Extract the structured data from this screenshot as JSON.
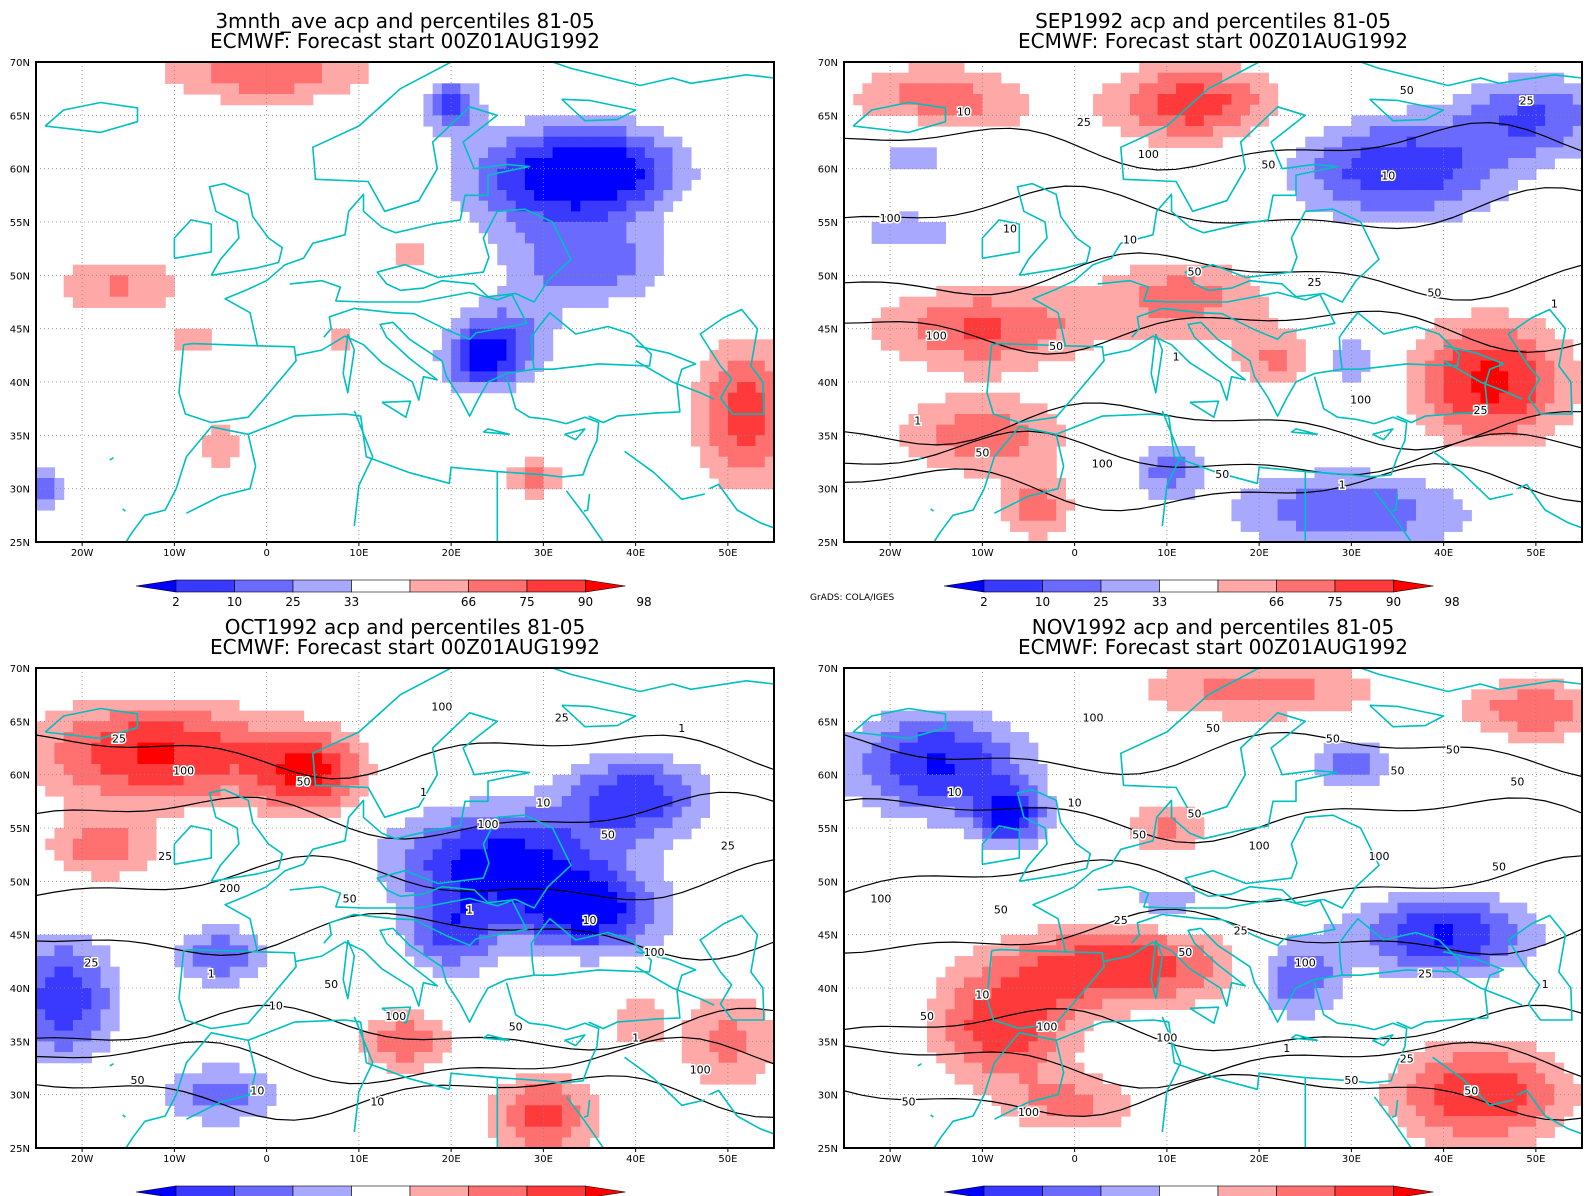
{
  "credit": "GrADS: COLA/IGES",
  "lon_labels": [
    "20W",
    "10W",
    "0",
    "10E",
    "20E",
    "30E",
    "40E",
    "50E"
  ],
  "lat_labels": [
    "25N",
    "30N",
    "35N",
    "40N",
    "45N",
    "50N",
    "55N",
    "60N",
    "65N",
    "70N"
  ],
  "colorbar": {
    "labels": [
      "2",
      "10",
      "25",
      "33",
      "66",
      "75",
      "90",
      "98"
    ],
    "colors": [
      "#0000ff",
      "#3a3aff",
      "#6a6aff",
      "#a8a8ff",
      "#ffffff",
      "#ffa8a8",
      "#ff7070",
      "#ff3a3a",
      "#ff0000"
    ]
  },
  "colors": {
    "coastline": "#00bfbf",
    "contour": "#000000",
    "grid": "#888888",
    "frame": "#000000",
    "shades": [
      "#0000ff",
      "#3a3aff",
      "#6a6aff",
      "#a8a8ff",
      "#ffffff",
      "#ffa8a8",
      "#ff7070",
      "#ff3a3a",
      "#ff0000"
    ]
  },
  "panels": [
    {
      "title1": "3mnth_ave acp and percentiles 81-05",
      "title2": "ECMWF: Forecast start 00Z01AUG1992",
      "show_credit": false,
      "contour_labels": [],
      "anomalies": [
        {
          "lon": -16,
          "lat": 49,
          "rx": 8,
          "ry": 3,
          "v": 1.0
        },
        {
          "lon": 0,
          "lat": 69,
          "rx": 12,
          "ry": 3,
          "v": 1.3
        },
        {
          "lon": -8,
          "lat": 44,
          "rx": 3,
          "ry": 2,
          "v": 0.8
        },
        {
          "lon": 30,
          "lat": 59,
          "rx": 10,
          "ry": 5,
          "v": -1.6
        },
        {
          "lon": 38,
          "lat": 60,
          "rx": 8,
          "ry": 4,
          "v": -1.4
        },
        {
          "lon": 35,
          "lat": 51,
          "rx": 9,
          "ry": 4,
          "v": -1.2
        },
        {
          "lon": 26,
          "lat": 44,
          "rx": 6,
          "ry": 4,
          "v": -1.1
        },
        {
          "lon": 23,
          "lat": 42,
          "rx": 4,
          "ry": 3,
          "v": -1.4
        },
        {
          "lon": 20,
          "lat": 65,
          "rx": 3,
          "ry": 2,
          "v": -0.9
        },
        {
          "lon": 52,
          "lat": 37,
          "rx": 6,
          "ry": 7,
          "v": 1.6
        },
        {
          "lon": 29,
          "lat": 31,
          "rx": 4,
          "ry": 2,
          "v": 1.1
        },
        {
          "lon": -5,
          "lat": 34,
          "rx": 3,
          "ry": 3,
          "v": 0.8
        },
        {
          "lon": -24,
          "lat": 30,
          "rx": 2,
          "ry": 2,
          "v": -1.2
        },
        {
          "lon": 16,
          "lat": 52,
          "rx": 3,
          "ry": 2,
          "v": 0.8
        },
        {
          "lon": 8,
          "lat": 44,
          "rx": 3,
          "ry": 2,
          "v": 0.7
        },
        {
          "lon": 20,
          "lat": 67,
          "rx": 3,
          "ry": 2,
          "v": -1.0
        }
      ]
    },
    {
      "title1": "SEP1992 acp and percentiles 81-05",
      "title2": "ECMWF: Forecast start 00Z01AUG1992",
      "show_credit": true,
      "contour_labels": [
        "50",
        "50",
        "50",
        "100",
        "100",
        "100",
        "100",
        "100",
        "25",
        "25",
        "50",
        "50",
        "25",
        "10",
        "50",
        "50",
        "10",
        "1",
        "10",
        "1",
        "10",
        "1",
        "1",
        "25"
      ],
      "anomalies": [
        {
          "lon": 13,
          "lat": 66,
          "rx": 10,
          "ry": 4,
          "v": 1.6
        },
        {
          "lon": -15,
          "lat": 66,
          "rx": 10,
          "ry": 4,
          "v": 1.3
        },
        {
          "lon": 35,
          "lat": 60,
          "rx": 12,
          "ry": 5,
          "v": -1.7
        },
        {
          "lon": 50,
          "lat": 65,
          "rx": 8,
          "ry": 4,
          "v": -1.3
        },
        {
          "lon": -17,
          "lat": 62,
          "rx": 6,
          "ry": 3,
          "v": -1.1
        },
        {
          "lon": -10,
          "lat": 45,
          "rx": 12,
          "ry": 4,
          "v": 1.4
        },
        {
          "lon": 12,
          "lat": 48,
          "rx": 10,
          "ry": 4,
          "v": 1.1
        },
        {
          "lon": 45,
          "lat": 40,
          "rx": 9,
          "ry": 6,
          "v": 1.9
        },
        {
          "lon": -10,
          "lat": 35,
          "rx": 10,
          "ry": 4,
          "v": 1.2
        },
        {
          "lon": 30,
          "lat": 28,
          "rx": 14,
          "ry": 4,
          "v": -1.3
        },
        {
          "lon": 10,
          "lat": 32,
          "rx": 4,
          "ry": 3,
          "v": -1.1
        },
        {
          "lon": 30,
          "lat": 42,
          "rx": 4,
          "ry": 3,
          "v": -1.0
        },
        {
          "lon": -4,
          "lat": 28,
          "rx": 4,
          "ry": 3,
          "v": 1.2
        },
        {
          "lon": -18,
          "lat": 54,
          "rx": 6,
          "ry": 2,
          "v": -1.0
        },
        {
          "lon": 22,
          "lat": 42,
          "rx": 5,
          "ry": 3,
          "v": 1.0
        }
      ]
    },
    {
      "title1": "OCT1992 acp and percentiles 81-05",
      "title2": "ECMWF: Forecast start 00Z01AUG1992",
      "show_credit": true,
      "contour_labels": [
        "10",
        "100",
        "100",
        "200",
        "100",
        "100",
        "100",
        "100",
        "50",
        "50",
        "50",
        "25",
        "25",
        "50",
        "50",
        "25",
        "10",
        "1",
        "1",
        "1",
        "1",
        "1",
        "25",
        "10",
        "10",
        "25",
        "50",
        "10"
      ],
      "anomalies": [
        {
          "lon": -12,
          "lat": 62,
          "rx": 14,
          "ry": 5,
          "v": 1.8
        },
        {
          "lon": 5,
          "lat": 60,
          "rx": 6,
          "ry": 4,
          "v": 1.6
        },
        {
          "lon": -18,
          "lat": 53,
          "rx": 6,
          "ry": 3,
          "v": 1.2
        },
        {
          "lon": 25,
          "lat": 52,
          "rx": 12,
          "ry": 5,
          "v": -1.9
        },
        {
          "lon": 40,
          "lat": 58,
          "rx": 8,
          "ry": 4,
          "v": -1.6
        },
        {
          "lon": 35,
          "lat": 47,
          "rx": 8,
          "ry": 4,
          "v": -1.9
        },
        {
          "lon": 20,
          "lat": 45,
          "rx": 5,
          "ry": 4,
          "v": -1.4
        },
        {
          "lon": -22,
          "lat": 39,
          "rx": 6,
          "ry": 6,
          "v": -1.7
        },
        {
          "lon": -5,
          "lat": 43,
          "rx": 5,
          "ry": 3,
          "v": -1.3
        },
        {
          "lon": -5,
          "lat": 30,
          "rx": 7,
          "ry": 3,
          "v": -1.2
        },
        {
          "lon": 15,
          "lat": 35,
          "rx": 5,
          "ry": 3,
          "v": 1.3
        },
        {
          "lon": 30,
          "lat": 28,
          "rx": 6,
          "ry": 4,
          "v": 1.5
        },
        {
          "lon": 50,
          "lat": 35,
          "rx": 6,
          "ry": 5,
          "v": 1.1
        },
        {
          "lon": 40,
          "lat": 37,
          "rx": 3,
          "ry": 3,
          "v": 0.9
        }
      ]
    },
    {
      "title1": "NOV1992 acp and percentiles 81-05",
      "title2": "ECMWF: Forecast start 00Z01AUG1992",
      "show_credit": true,
      "contour_labels": [
        "50",
        "50",
        "50",
        "50",
        "50",
        "100",
        "100",
        "100",
        "50",
        "100",
        "100",
        "50",
        "50",
        "50",
        "25",
        "10",
        "100",
        "100",
        "50",
        "25",
        "50",
        "1",
        "10",
        "1",
        "50",
        "100",
        "25",
        "50",
        "10",
        "50",
        "25"
      ],
      "anomalies": [
        {
          "lon": -15,
          "lat": 61,
          "rx": 10,
          "ry": 5,
          "v": -1.8
        },
        {
          "lon": -7,
          "lat": 56,
          "rx": 4,
          "ry": 3,
          "v": -1.7
        },
        {
          "lon": 20,
          "lat": 68,
          "rx": 14,
          "ry": 3,
          "v": 1.2
        },
        {
          "lon": 50,
          "lat": 66,
          "rx": 8,
          "ry": 3,
          "v": 1.3
        },
        {
          "lon": 5,
          "lat": 42,
          "rx": 14,
          "ry": 4,
          "v": 1.7
        },
        {
          "lon": -8,
          "lat": 36,
          "rx": 8,
          "ry": 5,
          "v": 1.6
        },
        {
          "lon": 40,
          "lat": 45,
          "rx": 10,
          "ry": 4,
          "v": -1.8
        },
        {
          "lon": 24,
          "lat": 41,
          "rx": 5,
          "ry": 4,
          "v": -1.5
        },
        {
          "lon": 44,
          "lat": 30,
          "rx": 10,
          "ry": 5,
          "v": 1.7
        },
        {
          "lon": 30,
          "lat": 61,
          "rx": 5,
          "ry": 3,
          "v": -1.1
        },
        {
          "lon": 10,
          "lat": 48,
          "rx": 5,
          "ry": 2,
          "v": -1.0
        },
        {
          "lon": 10,
          "lat": 55,
          "rx": 5,
          "ry": 3,
          "v": 1.0
        },
        {
          "lon": 0,
          "lat": 29,
          "rx": 8,
          "ry": 3,
          "v": 1.0
        }
      ]
    }
  ]
}
